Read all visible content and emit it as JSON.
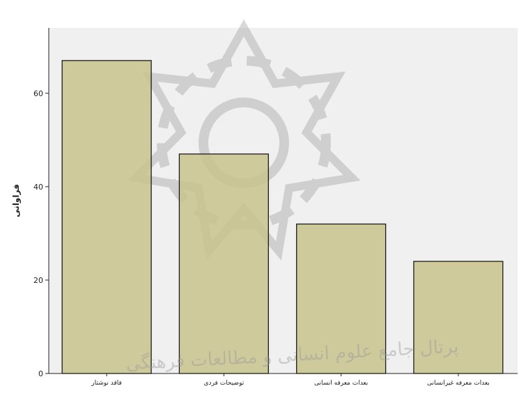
{
  "chart_data": {
    "type": "bar",
    "categories": [
      "فاقد نوشتار",
      "توضیحات فردی",
      "بعدات معرفه انسانی",
      "بعدات معرفه غیرانسانی"
    ],
    "values": [
      67,
      47,
      32,
      24
    ],
    "ylabel": "فراوانی",
    "xlabel": "",
    "ylim": [
      0,
      74
    ],
    "yticks": [
      0,
      20,
      40,
      60
    ],
    "grid": false,
    "colors": {
      "bar_fill": "#c9c48f",
      "bar_stroke": "#1a1a1a",
      "plot_background": "#f0f0f0"
    }
  },
  "watermark": {
    "caption": "پرتال جامع علوم انسانی و مطالعات فرهنگی",
    "icon": "rosette-watermark-icon"
  }
}
